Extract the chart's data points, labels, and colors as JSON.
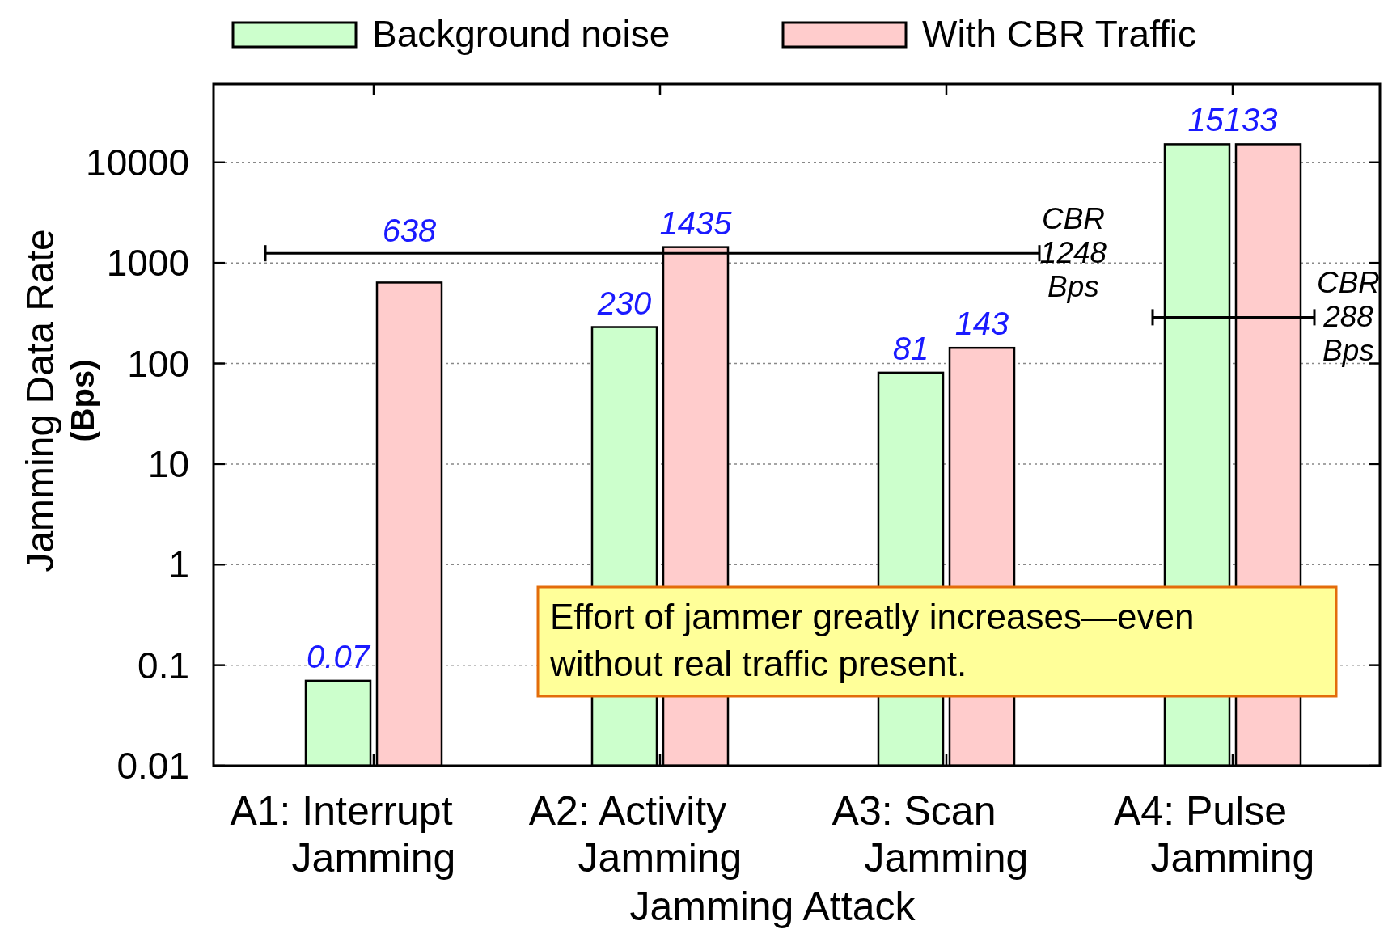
{
  "chart_data": {
    "type": "bar",
    "xlabel": "Jamming Attack",
    "ylabel": "Jamming Data Rate\n(Bps)",
    "categories": [
      "A1: Interrupt\nJamming",
      "A2: Activity\nJamming",
      "A3: Scan\nJamming",
      "A4: Pulse\nJamming"
    ],
    "series": [
      {
        "name": "Background noise",
        "color": "#ccffcc",
        "values": [
          0.07,
          230,
          81,
          15133
        ],
        "value_labels": [
          "0.07",
          "230",
          "81",
          null
        ]
      },
      {
        "name": "With CBR Traffic",
        "color": "#ffcccc",
        "values": [
          638,
          1435,
          143,
          15133
        ],
        "value_labels": [
          "638",
          "1435",
          "143",
          "15133"
        ]
      }
    ],
    "log": true,
    "ylim": [
      0.01,
      60000
    ],
    "yticks": [
      0.01,
      0.1,
      1,
      10,
      100,
      1000,
      10000
    ],
    "grid": "y",
    "legend": "top",
    "ref_lines": [
      {
        "axis": "y",
        "value": 1248,
        "label": "CBR\n1248\nBps"
      },
      {
        "axis": "y",
        "value": 288,
        "label": "CBR\n288\nBps"
      }
    ],
    "annotations": [
      "Effort of jammer greatly increases—even without real traffic present."
    ]
  }
}
